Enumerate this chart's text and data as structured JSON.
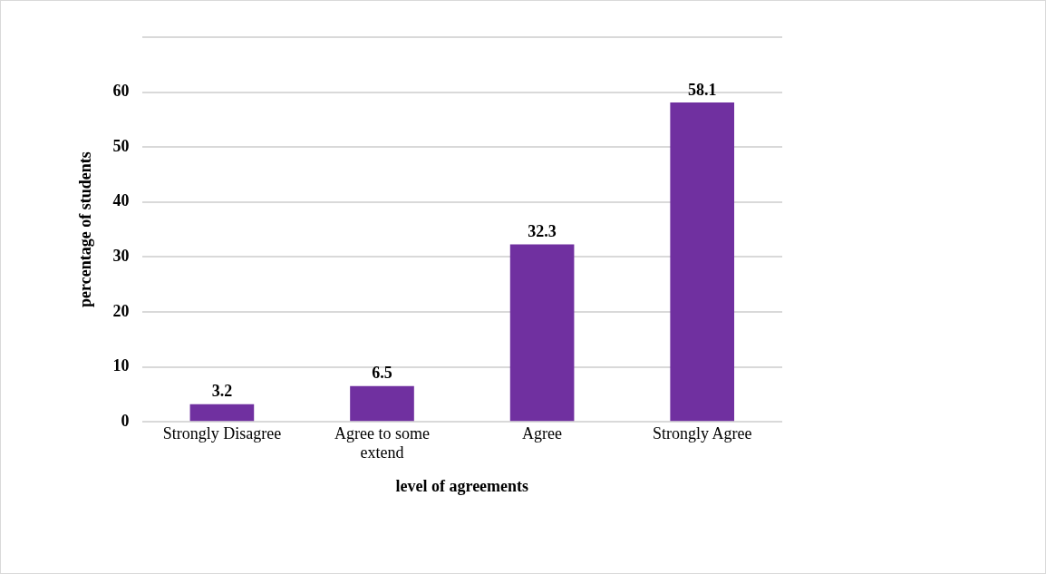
{
  "chart_data": {
    "type": "bar",
    "xlabel": "level of agreements",
    "ylabel": "percentage of students",
    "categories": [
      "Strongly Disagree",
      "Agree to some extend",
      "Agree",
      "Strongly Agree"
    ],
    "values": [
      3.2,
      6.5,
      32.3,
      58.1
    ],
    "color": "#7030a0",
    "ylim": [
      0,
      70
    ],
    "yticks": [
      0,
      10,
      20,
      30,
      40,
      50,
      60,
      {
        "value": 70,
        "label": null
      }
    ],
    "grid": "y",
    "data_labels": true,
    "legend": false
  }
}
